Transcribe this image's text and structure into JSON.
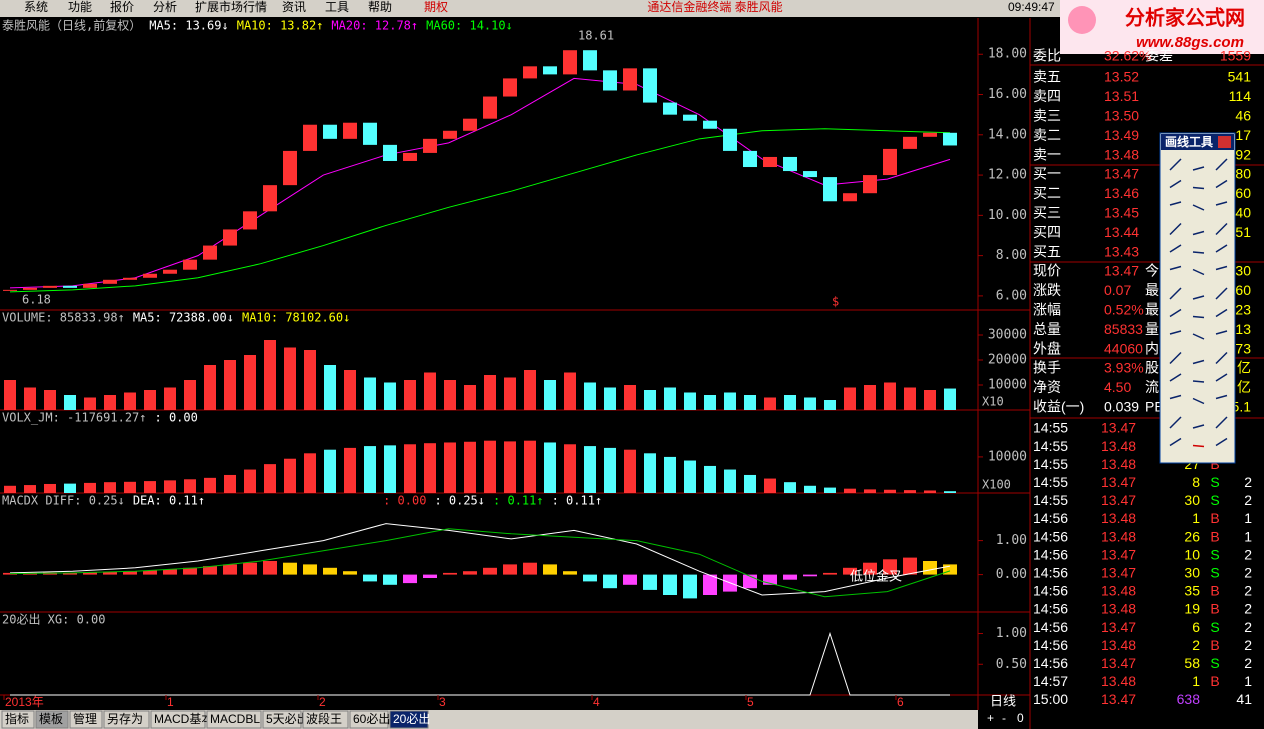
{
  "menu": [
    "系统",
    "功能",
    "报价",
    "分析",
    "扩展市场行情",
    "资讯",
    "工具",
    "帮助",
    "期权"
  ],
  "center_title": "通达信金融终端  泰胜风能",
  "clock": "09:49:47",
  "logo": {
    "name": "分析家公式网",
    "url": "www.88gs.com"
  },
  "toolbar_title": "画线工具",
  "chart_data": [
    {
      "type": "candlestick",
      "legend": [
        {
          "text": "泰胜风能（日线,前复权）",
          "color": "#c0c0c0"
        },
        {
          "text": "MA5: 13.69↓",
          "color": "#ffffff"
        },
        {
          "text": "MA10: 13.82↑",
          "color": "#ffff00"
        },
        {
          "text": "MA20: 12.78↑",
          "color": "#ff00ff"
        },
        {
          "text": "MA60: 14.10↓",
          "color": "#00ff00"
        }
      ],
      "close": [
        6.3,
        6.4,
        6.5,
        6.4,
        6.6,
        6.8,
        6.9,
        7.1,
        7.3,
        7.8,
        8.5,
        9.3,
        10.2,
        11.5,
        13.2,
        14.5,
        13.8,
        14.6,
        13.5,
        12.7,
        13.1,
        13.8,
        14.2,
        14.8,
        15.9,
        16.8,
        17.4,
        17.0,
        18.2,
        17.2,
        16.2,
        17.3,
        15.6,
        15.0,
        14.7,
        14.3,
        13.2,
        12.4,
        12.9,
        12.2,
        11.9,
        10.7,
        11.1,
        12.0,
        13.3,
        13.9,
        14.1,
        13.47
      ],
      "up_color": "#ff3232",
      "down_color": "#54ffff",
      "series": [
        {
          "color": "#ff00ff",
          "values": [
            6.4,
            6.5,
            6.9,
            8.0,
            10.0,
            12.0,
            13.0,
            13.6,
            15.0,
            16.8,
            16.5,
            15.0,
            12.8,
            11.5,
            11.8,
            12.78
          ]
        },
        {
          "color": "#00ff00",
          "values": [
            6.2,
            6.3,
            6.5,
            6.9,
            7.6,
            8.5,
            9.5,
            10.4,
            11.2,
            12.1,
            13.0,
            13.8,
            14.2,
            14.3,
            14.2,
            14.1
          ]
        }
      ],
      "ylim": [
        5.3,
        19.8
      ],
      "yticks": [
        {
          "value": 6,
          "label": "6.00"
        },
        {
          "value": 8,
          "label": "8.00"
        },
        {
          "value": 10,
          "label": "10.00"
        },
        {
          "value": 12,
          "label": "12.00"
        },
        {
          "value": 14,
          "label": "14.00"
        },
        {
          "value": 16,
          "label": "16.00"
        },
        {
          "value": 18,
          "label": "18.00"
        }
      ],
      "annotations": [
        "18.61",
        "6.18",
        "$"
      ]
    },
    {
      "type": "bar",
      "legend": [
        {
          "text": "VOLUME: 85833.98↑",
          "color": "#c0c0c0"
        },
        {
          "text": "MA5: 72388.00↓",
          "color": "#ffffff"
        },
        {
          "text": "MA10: 78102.60↓",
          "color": "#ffff00"
        }
      ],
      "values": [
        12000,
        9000,
        8000,
        6000,
        5000,
        6000,
        7000,
        8000,
        9000,
        12000,
        18000,
        20000,
        22000,
        28000,
        25000,
        24000,
        18000,
        16000,
        13000,
        11000,
        12000,
        15000,
        12000,
        10000,
        14000,
        13000,
        16000,
        12000,
        15000,
        11000,
        9000,
        10000,
        8000,
        9000,
        7000,
        6000,
        7000,
        6000,
        5000,
        6000,
        5000,
        4000,
        9000,
        10000,
        11000,
        9000,
        8000,
        8583
      ],
      "ylim": [
        0,
        40000
      ],
      "yticks": [
        10000,
        20000,
        30000
      ],
      "scale_label": "X10"
    },
    {
      "type": "bar",
      "legend": [
        {
          "text": "VOLX_JM: -117691.27↑",
          "color": "#c0c0c0"
        },
        {
          "text": ": 0.00",
          "color": "#ffffff"
        }
      ],
      "values": [
        2000,
        2200,
        2500,
        2600,
        2800,
        3000,
        3100,
        3300,
        3500,
        3800,
        4200,
        5000,
        6500,
        8000,
        9500,
        11000,
        12000,
        12500,
        13000,
        13200,
        13500,
        13800,
        14000,
        14200,
        14500,
        14300,
        14500,
        14000,
        13500,
        13000,
        12500,
        12000,
        11000,
        10000,
        9000,
        7500,
        6500,
        5000,
        4000,
        3000,
        2000,
        1500,
        1200,
        1000,
        900,
        800,
        700,
        500
      ],
      "ylim": [
        0,
        23000
      ],
      "yticks": [
        10000
      ],
      "scale_label": "X100"
    },
    {
      "type": "macd",
      "legend": [
        {
          "text": "MACDX DIFF: 0.25↓",
          "color": "#c0c0c0"
        },
        {
          "text": "DEA: 0.11↑",
          "color": "#ffffff"
        },
        {
          "text": ": 0.00",
          "color": "#ff3232"
        },
        {
          "text": ": 0.25↓",
          "color": "#ffffff"
        },
        {
          "text": ": 0.11↑",
          "color": "#00ff00"
        },
        {
          "text": ": 0.11↑",
          "color": "#ffffff"
        }
      ],
      "values": [
        0.05,
        0.05,
        0.06,
        0.06,
        0.07,
        0.08,
        0.1,
        0.12,
        0.15,
        0.2,
        0.25,
        0.3,
        0.35,
        0.4,
        0.35,
        0.3,
        0.2,
        0.1,
        -0.2,
        -0.3,
        -0.25,
        -0.1,
        0.05,
        0.1,
        0.2,
        0.3,
        0.35,
        0.3,
        0.1,
        -0.2,
        -0.4,
        -0.3,
        -0.45,
        -0.6,
        -0.7,
        -0.6,
        -0.5,
        -0.4,
        -0.3,
        -0.15,
        -0.05,
        0.05,
        0.2,
        0.35,
        0.45,
        0.5,
        0.4,
        0.3
      ],
      "series": [
        {
          "color": "#ffffff",
          "values": [
            0.05,
            0.1,
            0.2,
            0.4,
            0.7,
            1.0,
            1.5,
            1.3,
            1.05,
            1.3,
            0.9,
            0.1,
            -0.6,
            -0.5,
            -0.1,
            0.25
          ]
        },
        {
          "color": "#00c000",
          "values": [
            0.03,
            0.05,
            0.1,
            0.2,
            0.4,
            0.7,
            1.0,
            1.35,
            1.2,
            1.1,
            1.0,
            0.6,
            -0.2,
            -0.65,
            -0.5,
            0.11
          ]
        }
      ],
      "ylim": [
        -1.1,
        2.4
      ],
      "yticks": [
        {
          "value": 0,
          "label": "0.00"
        },
        {
          "value": 1,
          "label": "1.00"
        }
      ],
      "annotations": [
        "低位金叉"
      ]
    },
    {
      "type": "line",
      "legend": [
        {
          "text": "20必出 XG: 0.00",
          "color": "#c0c0c0"
        }
      ],
      "values": [
        0,
        0,
        0,
        0,
        0,
        0,
        0,
        0,
        0,
        0,
        0,
        0,
        0,
        0,
        0,
        0,
        0,
        0,
        0,
        0,
        0,
        0,
        0,
        0,
        0,
        0,
        0,
        0,
        0,
        0,
        0,
        0,
        0,
        0,
        0,
        0,
        0,
        0,
        0,
        0,
        0,
        1,
        0,
        0,
        0,
        0,
        0,
        0
      ],
      "ylim": [
        0,
        1.35
      ],
      "yticks": [
        {
          "value": 0.5,
          "label": "0.50"
        },
        {
          "value": 1,
          "label": "1.00"
        }
      ]
    }
  ],
  "time_axis": [
    "2013年",
    "1",
    "2",
    "3",
    "4",
    "5",
    "6"
  ],
  "period_label": "日线",
  "zoom": [
    "+",
    "-",
    "0"
  ],
  "tabs": [
    "指标",
    "模板",
    "管理",
    "另存为",
    "MACD基本",
    "MACDBL",
    "5天必出",
    "波段王",
    "60必出",
    "20必出"
  ],
  "order_book": {
    "header": [
      "委比",
      "32.62%",
      "委差",
      "1559"
    ],
    "asks": [
      [
        "卖五",
        "13.52",
        "541"
      ],
      [
        "卖四",
        "13.51",
        "114"
      ],
      [
        "卖三",
        "13.50",
        "46"
      ],
      [
        "卖二",
        "13.49",
        "17"
      ],
      [
        "卖一",
        "13.48",
        "92"
      ]
    ],
    "bids": [
      [
        "买一",
        "13.47",
        "80"
      ],
      [
        "买二",
        "13.46",
        "60"
      ],
      [
        "买三",
        "13.45",
        "40"
      ],
      [
        "买四",
        "13.44",
        "51"
      ],
      [
        "买五",
        "13.43"
      ]
    ]
  },
  "stats": [
    [
      "现价",
      "13.47",
      "今",
      "30"
    ],
    [
      "涨跌",
      "0.07",
      "最",
      "60"
    ],
    [
      "涨幅",
      "0.52%",
      "最",
      "23"
    ],
    [
      "总量",
      "85833",
      "量",
      "13"
    ],
    [
      "外盘",
      "44060",
      "内",
      "73"
    ],
    [
      "换手",
      "3.93%",
      "股",
      "亿"
    ],
    [
      "净资",
      "4.50",
      "流",
      "亿"
    ],
    [
      "收益(一)",
      "0.039",
      "PE",
      "5.1"
    ]
  ],
  "ticks": [
    [
      "14:55",
      "13.47"
    ],
    [
      "14:55",
      "13.48"
    ],
    [
      "14:55",
      "13.48",
      "27",
      "B"
    ],
    [
      "14:55",
      "13.47",
      "8",
      "S",
      "2"
    ],
    [
      "14:55",
      "13.47",
      "30",
      "S",
      "2"
    ],
    [
      "14:56",
      "13.48",
      "1",
      "B",
      "1"
    ],
    [
      "14:56",
      "13.48",
      "26",
      "B",
      "1"
    ],
    [
      "14:56",
      "13.47",
      "10",
      "S",
      "2"
    ],
    [
      "14:56",
      "13.47",
      "30",
      "S",
      "2"
    ],
    [
      "14:56",
      "13.48",
      "35",
      "B",
      "2"
    ],
    [
      "14:56",
      "13.48",
      "19",
      "B",
      "2"
    ],
    [
      "14:56",
      "13.47",
      "6",
      "S",
      "2"
    ],
    [
      "14:56",
      "13.48",
      "2",
      "B",
      "2"
    ],
    [
      "14:56",
      "13.47",
      "58",
      "S",
      "2"
    ],
    [
      "14:57",
      "13.48",
      "1",
      "B",
      "1"
    ],
    [
      "15:00",
      "13.47",
      "638",
      "41"
    ]
  ]
}
